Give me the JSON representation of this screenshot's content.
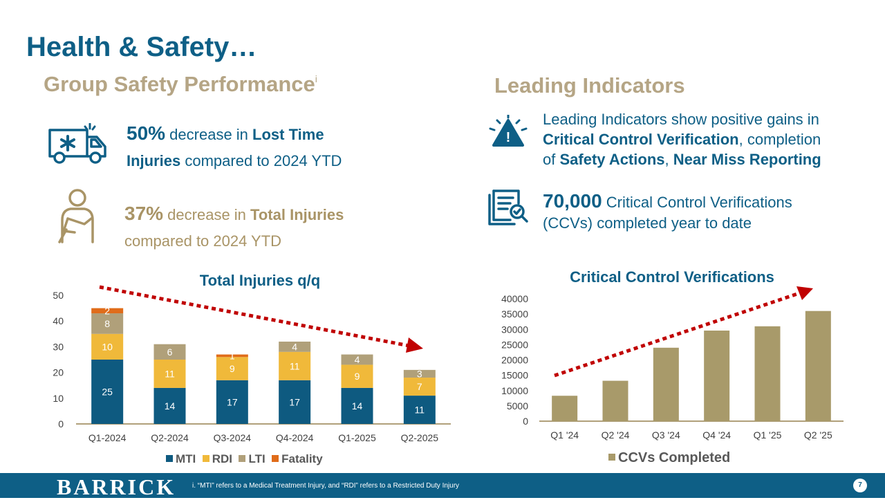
{
  "title": "Health & Safety…",
  "left_section": {
    "heading": "Group Safety Performance",
    "heading_sup": "i",
    "stat1": {
      "value": "50%",
      "t1": "decrease in",
      "b1": "Lost Time",
      "b2": "Injuries",
      "t2": "compared to 2024 YTD"
    },
    "stat2": {
      "value": "37%",
      "t1": "decrease in",
      "b1": "Total Injuries",
      "t2": "compared to 2024 YTD"
    }
  },
  "right_section": {
    "heading": "Leading Indicators",
    "stat1": {
      "t1": "Leading Indicators show positive gains in",
      "b1": "Critical Control Verification",
      "t2": ", completion",
      "t3": "of",
      "b2": "Safety Actions",
      "t4": ",",
      "b3": "Near Miss Reporting"
    },
    "stat2": {
      "value": "70,000",
      "t1": "Critical Control Verifications",
      "t2": "(CCVs) completed year to date"
    }
  },
  "colors": {
    "navy": "#0e5f86",
    "mti": "#0e5a80",
    "rdi": "#f0b93a",
    "lti": "#b0a07a",
    "fatality": "#e06c1a",
    "ccv": "#a89a6a",
    "arrow": "#c00000"
  },
  "chart_data": [
    {
      "type": "bar",
      "stacked": true,
      "title": "Total Injuries q/q",
      "categories": [
        "Q1-2024",
        "Q2-2024",
        "Q3-2024",
        "Q4-2024",
        "Q1-2025",
        "Q2-2025"
      ],
      "series": [
        {
          "name": "MTI",
          "values": [
            25,
            14,
            17,
            17,
            14,
            11
          ],
          "labels": [
            "25",
            "14",
            "17",
            "17",
            "14",
            "11"
          ]
        },
        {
          "name": "RDI",
          "values": [
            10,
            11,
            9,
            11,
            9,
            7
          ],
          "labels": [
            "10",
            "11",
            "9",
            "11",
            "9",
            "7"
          ]
        },
        {
          "name": "LTI",
          "values": [
            8,
            6,
            0,
            4,
            4,
            3
          ],
          "labels": [
            "8",
            "6",
            "",
            "4",
            "4",
            "3"
          ]
        },
        {
          "name": "Fatality",
          "values": [
            2,
            0,
            1,
            0,
            0,
            0
          ],
          "labels": [
            "2",
            "",
            "1",
            "",
            "",
            ""
          ]
        }
      ],
      "y_ticks": [
        "0",
        "10",
        "20",
        "30",
        "40",
        "50"
      ],
      "ylim": [
        0,
        50
      ],
      "legend": "bottom",
      "trend": "decreasing"
    },
    {
      "type": "bar",
      "title": "Critical Control Verifications",
      "categories": [
        "Q1 '24",
        "Q2 '24",
        "Q3 '24",
        "Q4 '24",
        "Q1 '25",
        "Q2 '25"
      ],
      "series": [
        {
          "name": "CCVs Completed",
          "values": [
            8300,
            13200,
            24000,
            29600,
            31000,
            36000
          ]
        }
      ],
      "y_ticks": [
        "0",
        "5000",
        "10000",
        "15000",
        "20000",
        "25000",
        "30000",
        "35000",
        "40000"
      ],
      "ylim": [
        0,
        40000
      ],
      "legend": "bottom",
      "trend": "increasing"
    }
  ],
  "footer": {
    "logo": "BARRICK",
    "footnote": "i.      “MTI” refers to a Medical Treatment Injury, and “RDI” refers to a Restricted Duty Injury",
    "page": "7"
  }
}
